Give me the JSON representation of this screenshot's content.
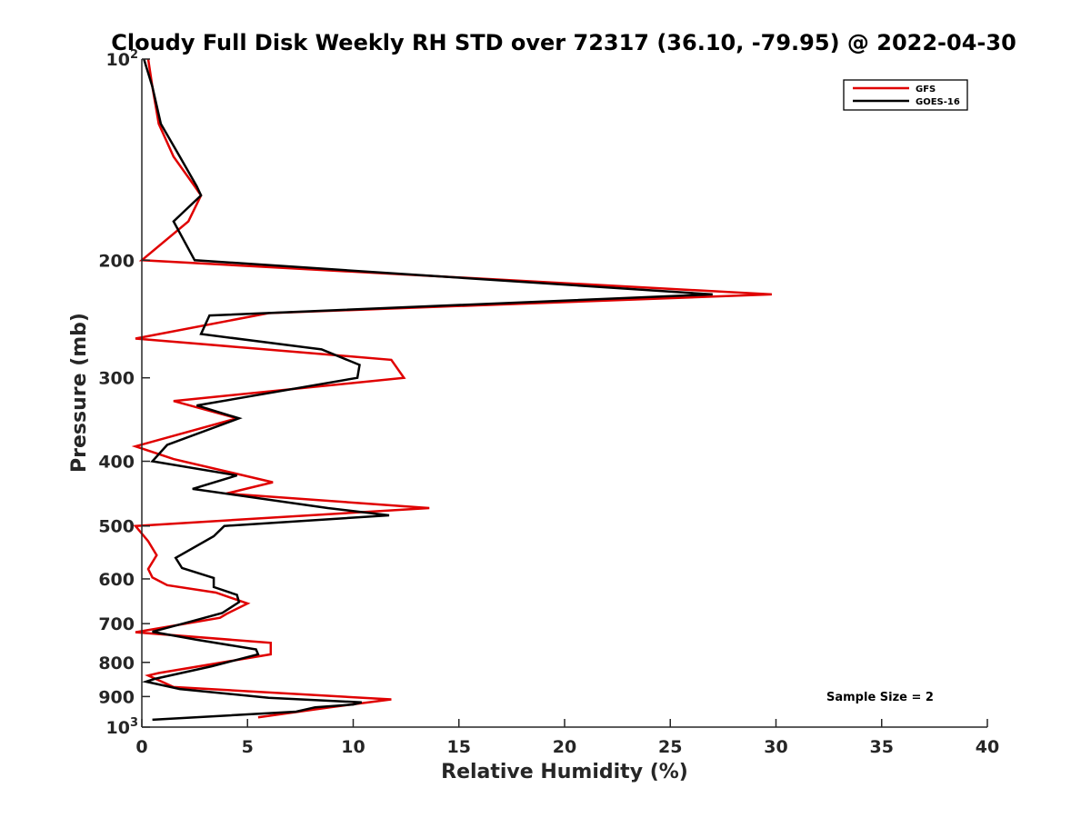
{
  "chart_data": {
    "type": "line",
    "title": "Cloudy Full Disk Weekly RH STD over 72317 (36.10, -79.95) @ 2022-04-30",
    "xlabel": "Relative Humidity (%)",
    "ylabel": "Pressure (mb)",
    "xlim": [
      0,
      40
    ],
    "ylim": [
      1000,
      100
    ],
    "yscale": "log",
    "x_ticks": [
      0,
      5,
      10,
      15,
      20,
      25,
      30,
      35,
      40
    ],
    "y_ticks": [
      {
        "value": 100,
        "base": "10",
        "exp": "2"
      },
      {
        "value": 200,
        "label": "200"
      },
      {
        "value": 300,
        "label": "300"
      },
      {
        "value": 400,
        "label": "400"
      },
      {
        "value": 500,
        "label": "500"
      },
      {
        "value": 600,
        "label": "600"
      },
      {
        "value": 700,
        "label": "700"
      },
      {
        "value": 800,
        "label": "800"
      },
      {
        "value": 900,
        "label": "900"
      },
      {
        "value": 1000,
        "base": "10",
        "exp": "3"
      }
    ],
    "grid": false,
    "legend_position": "top-right",
    "annotation": "Sample Size = 2",
    "series": [
      {
        "name": "GFS",
        "color": "#e00000",
        "points": [
          [
            0.3,
            100
          ],
          [
            0.5,
            110
          ],
          [
            0.8,
            125
          ],
          [
            1.5,
            140
          ],
          [
            2.5,
            155
          ],
          [
            2.8,
            160
          ],
          [
            2.2,
            175
          ],
          [
            0.0,
            200
          ],
          [
            29.8,
            225
          ],
          [
            6.0,
            240
          ],
          [
            -0.3,
            262
          ],
          [
            11.8,
            282
          ],
          [
            12.4,
            300
          ],
          [
            1.5,
            325
          ],
          [
            4.5,
            345
          ],
          [
            -0.3,
            380
          ],
          [
            1.5,
            397
          ],
          [
            6.2,
            430
          ],
          [
            4.0,
            447
          ],
          [
            13.6,
            470
          ],
          [
            -0.3,
            500
          ],
          [
            0.3,
            527
          ],
          [
            0.7,
            553
          ],
          [
            0.3,
            580
          ],
          [
            0.5,
            597
          ],
          [
            1.2,
            613
          ],
          [
            3.5,
            629
          ],
          [
            5.0,
            653
          ],
          [
            4.0,
            677
          ],
          [
            3.7,
            686
          ],
          [
            -0.3,
            721
          ],
          [
            6.1,
            748
          ],
          [
            6.1,
            778
          ],
          [
            0.8,
            830
          ],
          [
            0.3,
            837
          ],
          [
            1.5,
            871
          ],
          [
            11.8,
            909
          ],
          [
            8.9,
            934
          ],
          [
            5.5,
            967
          ]
        ]
      },
      {
        "name": "GOES-16",
        "color": "#000000",
        "points": [
          [
            0.1,
            100
          ],
          [
            0.5,
            110
          ],
          [
            0.9,
            125
          ],
          [
            1.8,
            140
          ],
          [
            2.6,
            155
          ],
          [
            2.8,
            160
          ],
          [
            1.5,
            175
          ],
          [
            2.5,
            200
          ],
          [
            27.0,
            225
          ],
          [
            3.2,
            242
          ],
          [
            2.8,
            258
          ],
          [
            8.5,
            272
          ],
          [
            10.3,
            287
          ],
          [
            10.2,
            300
          ],
          [
            2.6,
            330
          ],
          [
            4.6,
            345
          ],
          [
            1.2,
            378
          ],
          [
            0.5,
            400
          ],
          [
            4.5,
            420
          ],
          [
            2.4,
            440
          ],
          [
            8.8,
            470
          ],
          [
            11.7,
            482
          ],
          [
            3.9,
            500
          ],
          [
            3.4,
            518
          ],
          [
            1.6,
            558
          ],
          [
            1.9,
            578
          ],
          [
            3.4,
            598
          ],
          [
            3.4,
            617
          ],
          [
            4.5,
            634
          ],
          [
            4.6,
            650
          ],
          [
            3.8,
            675
          ],
          [
            2.3,
            695
          ],
          [
            0.5,
            720
          ],
          [
            2.6,
            740
          ],
          [
            5.4,
            765
          ],
          [
            5.5,
            778
          ],
          [
            3.3,
            811
          ],
          [
            0.6,
            847
          ],
          [
            0.2,
            855
          ],
          [
            1.8,
            877
          ],
          [
            6.0,
            904
          ],
          [
            10.4,
            918
          ],
          [
            10.0,
            925
          ],
          [
            8.2,
            934
          ],
          [
            7.3,
            948
          ],
          [
            0.5,
            975
          ]
        ]
      }
    ]
  }
}
